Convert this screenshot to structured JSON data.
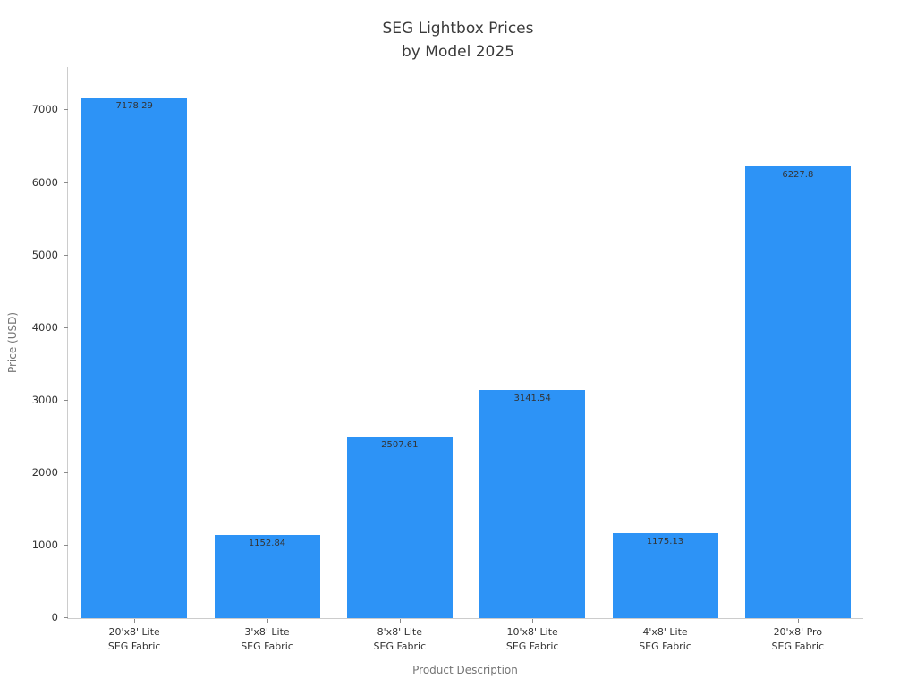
{
  "chart_data": {
    "type": "bar",
    "title": "SEG Lightbox Prices by Model 2025",
    "title_lines": [
      "SEG Lightbox Prices",
      "by Model 2025"
    ],
    "xlabel": "Product Description",
    "ylabel": "Price (USD)",
    "categories": [
      [
        "20'x8' Lite",
        "SEG Fabric"
      ],
      [
        "3'x8' Lite",
        "SEG Fabric"
      ],
      [
        "8'x8' Lite",
        "SEG Fabric"
      ],
      [
        "10'x8' Lite",
        "SEG Fabric"
      ],
      [
        "4'x8' Lite",
        "SEG Fabric"
      ],
      [
        "20'x8' Pro",
        "SEG Fabric"
      ]
    ],
    "values": [
      7178.29,
      1152.84,
      2507.61,
      3141.54,
      1175.13,
      6227.8
    ],
    "value_labels": [
      "7178.29",
      "1152.84",
      "2507.61",
      "3141.54",
      "1175.13",
      "6227.8"
    ],
    "yticks": [
      0,
      1000,
      2000,
      3000,
      4000,
      5000,
      6000,
      7000
    ],
    "ylim": [
      0,
      7610
    ],
    "grid": false,
    "legend": null,
    "colors": {
      "bar": "#2d93f6",
      "title_text": "#3a3a3a",
      "tick_text": "#333333",
      "axis_title_text": "#757575",
      "spine": "#cccccc",
      "value_label_text": "#333333"
    }
  }
}
